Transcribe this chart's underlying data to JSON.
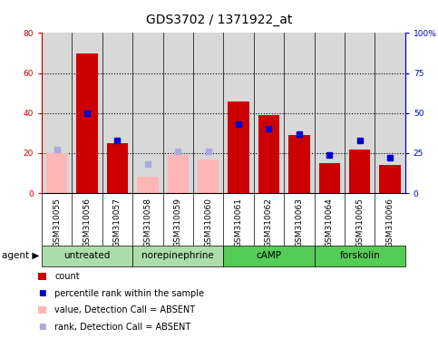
{
  "title": "GDS3702 / 1371922_at",
  "samples": [
    "GSM310055",
    "GSM310056",
    "GSM310057",
    "GSM310058",
    "GSM310059",
    "GSM310060",
    "GSM310061",
    "GSM310062",
    "GSM310063",
    "GSM310064",
    "GSM310065",
    "GSM310066"
  ],
  "agents": [
    {
      "label": "untreated",
      "indices": [
        0,
        1,
        2
      ]
    },
    {
      "label": "norepinephrine",
      "indices": [
        3,
        4,
        5
      ]
    },
    {
      "label": "cAMP",
      "indices": [
        6,
        7,
        8
      ]
    },
    {
      "label": "forskolin",
      "indices": [
        9,
        10,
        11
      ]
    }
  ],
  "count_values": [
    null,
    70,
    25,
    null,
    null,
    null,
    46,
    39,
    29,
    15,
    22,
    14
  ],
  "absent_value": [
    20,
    null,
    null,
    8,
    19,
    17,
    null,
    null,
    null,
    null,
    null,
    null
  ],
  "percentile_rank": [
    null,
    50,
    33,
    null,
    null,
    null,
    43,
    40,
    37,
    24,
    33,
    22
  ],
  "absent_rank": [
    27,
    null,
    null,
    18,
    26,
    26,
    null,
    null,
    null,
    null,
    null,
    null
  ],
  "left_ylim": [
    0,
    80
  ],
  "right_ylim": [
    0,
    100
  ],
  "left_yticks": [
    0,
    20,
    40,
    60,
    80
  ],
  "right_yticks": [
    0,
    25,
    50,
    75,
    100
  ],
  "left_ylabel_color": "#cc0000",
  "right_ylabel_color": "#0000cc",
  "bar_color_count": "#cc0000",
  "bar_color_absent_val": "#ffb6b6",
  "dot_color_rank": "#0000cc",
  "dot_color_absent_rank": "#aaaadd",
  "background_color": "#d8d8d8",
  "agent_color_light": "#aaddaa",
  "agent_color_dark": "#55cc55",
  "title_fontsize": 10,
  "tick_fontsize": 6.5,
  "legend_fontsize": 7,
  "label_fontsize": 7.5
}
